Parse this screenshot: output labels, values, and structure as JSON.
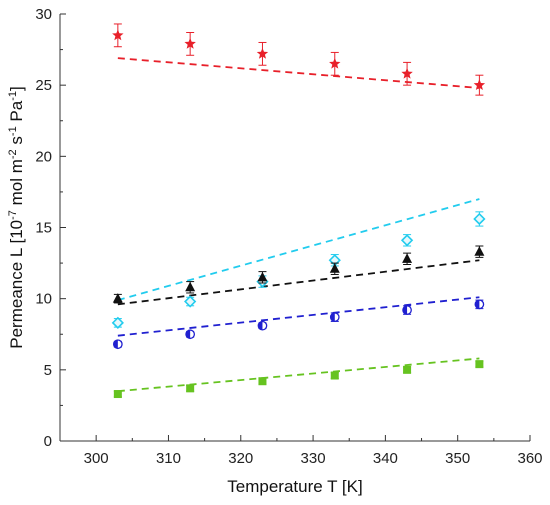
{
  "chart_data": {
    "type": "scatter",
    "title": "",
    "xlabel": "Temperature T [K]",
    "ylabel_main": "Permeance L [10",
    "ylabel_exp1": "-7",
    "ylabel_mid": " mol m",
    "ylabel_exp2": "-2",
    "ylabel_mid2": " s",
    "ylabel_exp3": "-1",
    "ylabel_mid3": " Pa",
    "ylabel_exp4": "-1",
    "ylabel_end": "]",
    "xlim": [
      295,
      360
    ],
    "ylim": [
      0,
      30
    ],
    "xticks": [
      300,
      310,
      320,
      330,
      340,
      350,
      360
    ],
    "yticks": [
      0,
      5,
      10,
      15,
      20,
      25,
      30
    ],
    "grid": false,
    "legend": "none",
    "x": [
      303,
      313,
      323,
      333,
      343,
      353
    ],
    "series": [
      {
        "marker": "star",
        "color": "#e8202a",
        "values": [
          28.5,
          27.9,
          27.2,
          26.5,
          25.8,
          25.0
        ],
        "errors": [
          0.8,
          0.8,
          0.8,
          0.8,
          0.8,
          0.7
        ],
        "fit": [
          26.9,
          24.8
        ]
      },
      {
        "marker": "diamond",
        "color": "#22ccee",
        "values": [
          8.3,
          9.8,
          11.2,
          12.7,
          14.1,
          15.6
        ],
        "errors": [
          0.3,
          0.3,
          0.4,
          0.4,
          0.4,
          0.5
        ],
        "fit": [
          9.9,
          17.0
        ]
      },
      {
        "marker": "triangle",
        "color": "#111111",
        "values": [
          10.0,
          10.8,
          11.5,
          12.1,
          12.8,
          13.3
        ],
        "errors": [
          0.3,
          0.4,
          0.4,
          0.4,
          0.4,
          0.4
        ],
        "fit": [
          9.6,
          12.7
        ]
      },
      {
        "marker": "half-circle",
        "color": "#2020d0",
        "values": [
          6.8,
          7.5,
          8.1,
          8.7,
          9.2,
          9.6
        ],
        "errors": [
          0.2,
          0.2,
          0.2,
          0.3,
          0.3,
          0.3
        ],
        "fit": [
          7.4,
          10.1
        ]
      },
      {
        "marker": "square",
        "color": "#66c320",
        "values": [
          3.3,
          3.7,
          4.2,
          4.6,
          5.0,
          5.4
        ],
        "errors": [
          0.2,
          0.2,
          0.2,
          0.2,
          0.2,
          0.2
        ],
        "fit": [
          3.5,
          5.8
        ]
      }
    ]
  }
}
